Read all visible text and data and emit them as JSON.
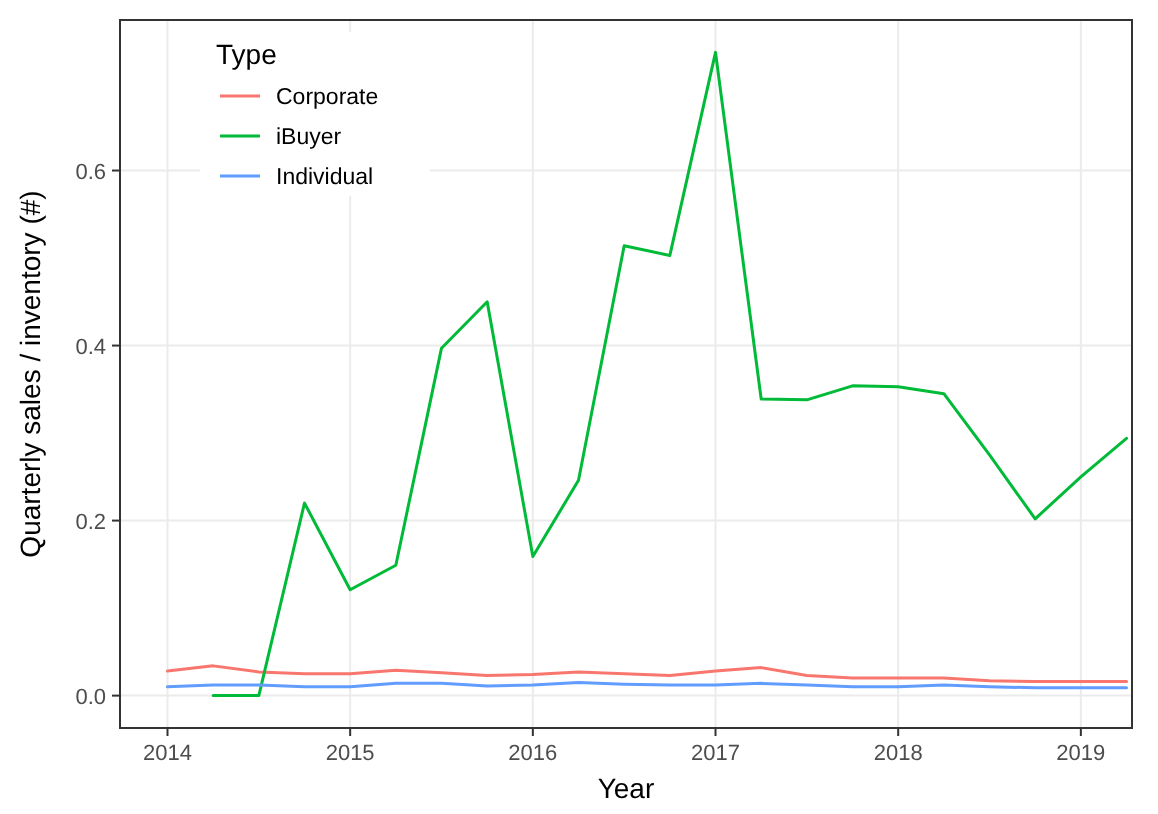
{
  "chart_data": {
    "type": "line",
    "xlabel": "Year",
    "ylabel": "Quarterly sales / inventory (#)",
    "legend_title": "Type",
    "legend": "top left",
    "grid": true,
    "x": [
      2014,
      2014.25,
      2014.5,
      2014.75,
      2015,
      2015.25,
      2015.5,
      2015.75,
      2016,
      2016.25,
      2016.5,
      2016.75,
      2017,
      2017.25,
      2017.5,
      2017.75,
      2018,
      2018.25,
      2018.5,
      2018.75,
      2019,
      2019.25
    ],
    "xlim": [
      2013.74,
      2019.28
    ],
    "xticks": [
      2014,
      2015,
      2016,
      2017,
      2018,
      2019
    ],
    "ylim": [
      -0.037,
      0.772
    ],
    "yticks": [
      {
        "value": 0,
        "label": "0.0"
      },
      {
        "value": 0.2,
        "label": "0.2"
      },
      {
        "value": 0.4,
        "label": "0.4"
      },
      {
        "value": 0.6,
        "label": "0.6"
      }
    ],
    "series": [
      {
        "name": "Corporate",
        "color": "#f8766d",
        "values": [
          0.028,
          0.034,
          0.027,
          0.025,
          0.025,
          0.029,
          0.026,
          0.023,
          0.024,
          0.027,
          0.025,
          0.023,
          0.028,
          0.032,
          0.023,
          0.02,
          0.02,
          0.02,
          0.017,
          0.016,
          0.016,
          0.016
        ]
      },
      {
        "name": "iBuyer",
        "color": "#00ba38",
        "values": [
          null,
          0,
          0,
          0.22,
          0.121,
          0.149,
          0.397,
          0.45,
          0.159,
          0.246,
          0.514,
          0.503,
          0.735,
          0.339,
          0.338,
          0.354,
          0.353,
          0.345,
          0.275,
          0.202,
          0.25,
          0.294
        ]
      },
      {
        "name": "Individual",
        "color": "#619cff",
        "values": [
          0.01,
          0.012,
          0.012,
          0.01,
          0.01,
          0.014,
          0.014,
          0.011,
          0.012,
          0.015,
          0.013,
          0.012,
          0.012,
          0.014,
          0.012,
          0.01,
          0.01,
          0.012,
          0.01,
          0.009,
          0.009,
          0.009
        ]
      }
    ]
  }
}
